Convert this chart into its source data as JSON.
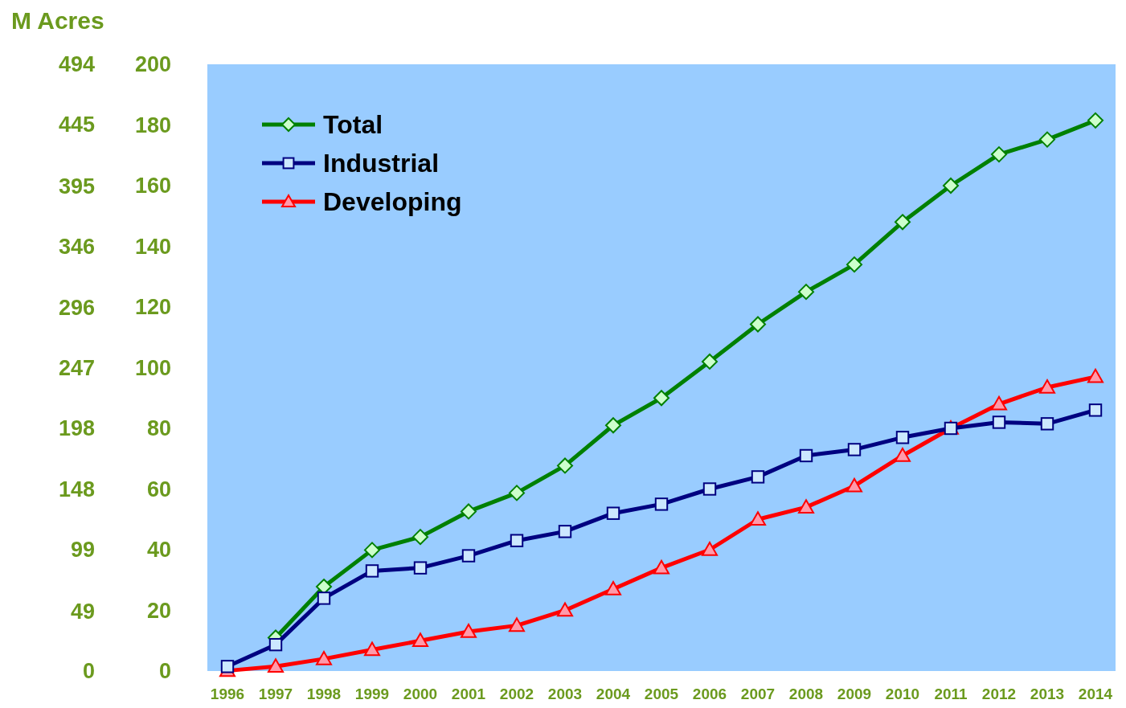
{
  "chart_data": {
    "type": "line",
    "categories": [
      "1996",
      "1997",
      "1998",
      "1999",
      "2000",
      "2001",
      "2002",
      "2003",
      "2004",
      "2005",
      "2006",
      "2007",
      "2008",
      "2009",
      "2010",
      "2011",
      "2012",
      "2013",
      "2014"
    ],
    "series": [
      {
        "name": "Total",
        "color": "#008000",
        "marker": "diamond",
        "values": [
          null,
          11,
          27.8,
          39.9,
          44.2,
          52.6,
          58.7,
          67.7,
          81,
          90,
          102,
          114.3,
          125,
          134,
          148,
          160,
          170.3,
          175.2,
          181.5
        ]
      },
      {
        "name": "Industrial",
        "color": "#000080",
        "marker": "square",
        "values": [
          1.5,
          8.7,
          24,
          33,
          34,
          38,
          43,
          46,
          52,
          55,
          60,
          64,
          71,
          73,
          77,
          80,
          82,
          81.5,
          86
        ]
      },
      {
        "name": "Developing",
        "color": "#ff0000",
        "marker": "triangle",
        "values": [
          0.1,
          1.5,
          4,
          7,
          10,
          13,
          15,
          20,
          27,
          34,
          40,
          50,
          54,
          61,
          71,
          80,
          88,
          93.5,
          97
        ]
      }
    ],
    "ylim": [
      0,
      200
    ],
    "yticks": [
      0,
      20,
      40,
      60,
      80,
      100,
      120,
      140,
      160,
      180,
      200
    ],
    "y2label": "M Acres",
    "y2lim": [
      0,
      494
    ],
    "y2ticks": [
      0,
      49,
      99,
      148,
      198,
      247,
      296,
      346,
      395,
      445,
      494
    ],
    "legend": "top left",
    "grid": false
  }
}
